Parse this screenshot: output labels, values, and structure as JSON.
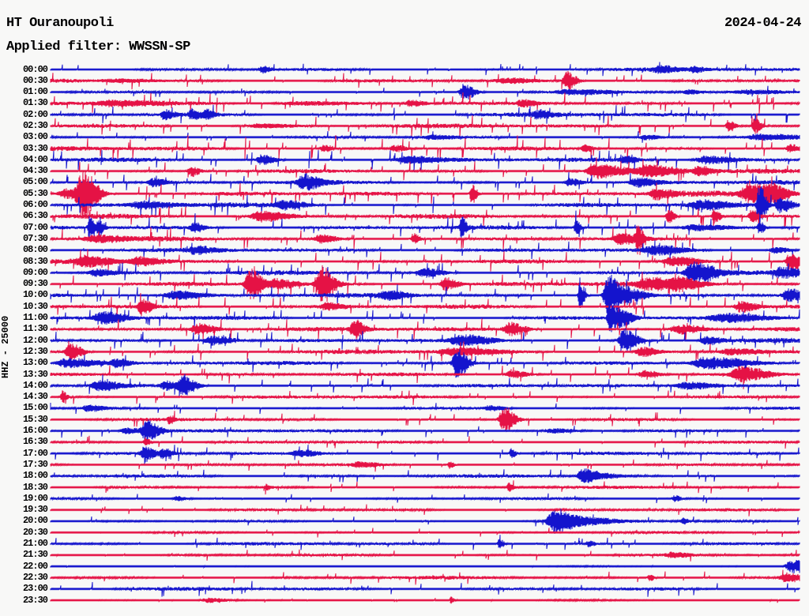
{
  "header": {
    "station": "HT Ouranoupoli",
    "filter": "Applied filter: WWSSN-SP",
    "date": "2024-04-24"
  },
  "axis": {
    "scale_label": "HHZ - 25000",
    "start_time": "00:00",
    "end_time": "23:30",
    "minutes_per_row": 30
  },
  "chart_data": {
    "type": "line",
    "subtype": "helicorder-seismogram",
    "legend": "alternating half-hour traces, blue = hh:00 rows, red = hh:30 rows",
    "colors": {
      "blue": "#1414cd",
      "red": "#e51245",
      "label": "#000000",
      "background": "#f8f8f7"
    },
    "rows": [
      {
        "t": "00:00",
        "c": "blue",
        "n": 1.6,
        "s": 1.2,
        "e": [
          [
            332,
            5,
            4
          ],
          [
            835,
            12,
            3
          ],
          [
            878,
            6,
            3
          ]
        ]
      },
      {
        "t": "00:30",
        "c": "red",
        "n": 1.7,
        "s": 1.5,
        "e": [
          [
            717,
            6,
            12
          ],
          [
            640,
            20,
            3
          ],
          [
            150,
            30,
            2.5
          ]
        ]
      },
      {
        "t": "01:00",
        "c": "blue",
        "n": 1.2,
        "s": 1.0,
        "e": [
          [
            587,
            7,
            10
          ],
          [
            720,
            25,
            2.5
          ],
          [
            950,
            30,
            2.5
          ],
          [
            870,
            8,
            3
          ]
        ]
      },
      {
        "t": "01:30",
        "c": "red",
        "n": 1.8,
        "s": 2.2,
        "e": [
          [
            140,
            25,
            3
          ],
          [
            380,
            40,
            2.5
          ],
          [
            520,
            10,
            4
          ],
          [
            660,
            8,
            4
          ]
        ]
      },
      {
        "t": "02:00",
        "c": "blue",
        "n": 1.8,
        "s": 1.8,
        "e": [
          [
            208,
            6,
            6
          ],
          [
            243,
            6,
            6
          ],
          [
            262,
            5,
            5
          ],
          [
            680,
            8,
            4
          ]
        ]
      },
      {
        "t": "02:30",
        "c": "red",
        "n": 1.8,
        "s": 2.0,
        "e": [
          [
            922,
            4,
            8
          ],
          [
            955,
            4,
            9
          ],
          [
            330,
            20,
            2.5
          ]
        ]
      },
      {
        "t": "03:00",
        "c": "blue",
        "n": 1.4,
        "s": 1.2,
        "e": [
          [
            545,
            15,
            2.5
          ],
          [
            817,
            10,
            3
          ],
          [
            960,
            20,
            3
          ]
        ]
      },
      {
        "t": "03:30",
        "c": "red",
        "n": 2.0,
        "s": 2.6,
        "e": [
          [
            410,
            6,
            5
          ],
          [
            500,
            8,
            4
          ],
          [
            740,
            5,
            5
          ],
          [
            1000,
            6,
            5
          ]
        ]
      },
      {
        "t": "04:00",
        "c": "blue",
        "n": 2.0,
        "s": 2.0,
        "e": [
          [
            331,
            8,
            6
          ],
          [
            515,
            20,
            4
          ],
          [
            791,
            8,
            4
          ],
          [
            893,
            18,
            5
          ]
        ]
      },
      {
        "t": "04:30",
        "c": "red",
        "n": 2.0,
        "s": 2.0,
        "e": [
          [
            242,
            6,
            6
          ],
          [
            755,
            16,
            8
          ],
          [
            820,
            18,
            6
          ],
          [
            884,
            8,
            5
          ]
        ]
      },
      {
        "t": "05:00",
        "c": "blue",
        "n": 2.0,
        "s": 1.8,
        "e": [
          [
            193,
            8,
            5
          ],
          [
            385,
            10,
            9
          ],
          [
            721,
            8,
            5
          ],
          [
            807,
            12,
            5
          ]
        ]
      },
      {
        "t": "05:30",
        "c": "red",
        "n": 2.2,
        "s": 2.0,
        "e": [
          [
            104,
            9,
            26
          ],
          [
            85,
            15,
            6
          ],
          [
            597,
            3,
            14
          ],
          [
            830,
            10,
            6
          ],
          [
            950,
            16,
            11
          ],
          [
            975,
            10,
            8
          ]
        ]
      },
      {
        "t": "06:00",
        "c": "blue",
        "n": 2.2,
        "s": 2.0,
        "e": [
          [
            180,
            20,
            4
          ],
          [
            360,
            14,
            5
          ],
          [
            887,
            16,
            5
          ],
          [
            961,
            4,
            24
          ],
          [
            988,
            8,
            10
          ]
        ]
      },
      {
        "t": "06:30",
        "c": "red",
        "n": 2.2,
        "s": 2.0,
        "e": [
          [
            330,
            16,
            6
          ],
          [
            846,
            4,
            8
          ],
          [
            904,
            4,
            9
          ],
          [
            951,
            4,
            8
          ]
        ]
      },
      {
        "t": "07:00",
        "c": "blue",
        "n": 1.8,
        "s": 2.0,
        "e": [
          [
            113,
            3,
            13
          ],
          [
            125,
            3,
            12
          ],
          [
            245,
            6,
            6
          ],
          [
            584,
            3,
            12
          ],
          [
            729,
            3,
            10
          ],
          [
            880,
            25,
            4
          ],
          [
            961,
            3,
            9
          ]
        ]
      },
      {
        "t": "07:30",
        "c": "red",
        "n": 1.8,
        "s": 2.2,
        "e": [
          [
            120,
            20,
            4
          ],
          [
            405,
            10,
            5
          ],
          [
            523,
            4,
            7
          ],
          [
            785,
            12,
            6
          ],
          [
            807,
            3,
            15
          ]
        ]
      },
      {
        "t": "08:00",
        "c": "blue",
        "n": 1.8,
        "s": 1.6,
        "e": [
          [
            247,
            12,
            4
          ],
          [
            830,
            18,
            5
          ],
          [
            980,
            10,
            4
          ]
        ]
      },
      {
        "t": "08:30",
        "c": "red",
        "n": 2.0,
        "s": 2.0,
        "e": [
          [
            108,
            16,
            6
          ],
          [
            175,
            14,
            5
          ],
          [
            852,
            16,
            6
          ],
          [
            1000,
            6,
            12
          ]
        ]
      },
      {
        "t": "09:00",
        "c": "blue",
        "n": 2.0,
        "s": 1.8,
        "e": [
          [
            121,
            12,
            4
          ],
          [
            537,
            12,
            5
          ],
          [
            878,
            14,
            12
          ],
          [
            990,
            14,
            6
          ]
        ]
      },
      {
        "t": "09:30",
        "c": "red",
        "n": 2.2,
        "s": 2.0,
        "e": [
          [
            316,
            8,
            18
          ],
          [
            350,
            12,
            6
          ],
          [
            406,
            8,
            20
          ],
          [
            563,
            8,
            8
          ],
          [
            820,
            16,
            6
          ],
          [
            858,
            14,
            6
          ]
        ]
      },
      {
        "t": "10:00",
        "c": "blue",
        "n": 2.0,
        "s": 1.8,
        "e": [
          [
            220,
            16,
            5
          ],
          [
            490,
            12,
            5
          ],
          [
            734,
            3,
            17
          ],
          [
            770,
            8,
            26
          ],
          [
            795,
            12,
            8
          ],
          [
            997,
            8,
            8
          ]
        ]
      },
      {
        "t": "10:30",
        "c": "red",
        "n": 2.0,
        "s": 2.0,
        "e": [
          [
            179,
            6,
            9
          ],
          [
            414,
            10,
            4
          ],
          [
            937,
            10,
            7
          ]
        ]
      },
      {
        "t": "11:00",
        "c": "blue",
        "n": 1.8,
        "s": 1.8,
        "e": [
          [
            130,
            14,
            7
          ],
          [
            771,
            3,
            20
          ],
          [
            783,
            8,
            12
          ],
          [
            920,
            30,
            5
          ]
        ]
      },
      {
        "t": "11:30",
        "c": "red",
        "n": 2.0,
        "s": 2.0,
        "e": [
          [
            250,
            12,
            7
          ],
          [
            448,
            6,
            11
          ],
          [
            645,
            10,
            8
          ],
          [
            860,
            16,
            6
          ]
        ]
      },
      {
        "t": "12:00",
        "c": "blue",
        "n": 2.0,
        "s": 1.8,
        "e": [
          [
            268,
            14,
            6
          ],
          [
            585,
            20,
            6
          ],
          [
            790,
            8,
            15
          ],
          [
            894,
            10,
            5
          ]
        ]
      },
      {
        "t": "12:30",
        "c": "red",
        "n": 1.8,
        "s": 1.8,
        "e": [
          [
            88,
            8,
            10
          ],
          [
            575,
            25,
            4
          ],
          [
            812,
            10,
            6
          ],
          [
            925,
            20,
            4
          ]
        ]
      },
      {
        "t": "13:00",
        "c": "blue",
        "n": 1.6,
        "s": 1.6,
        "e": [
          [
            85,
            20,
            6
          ],
          [
            147,
            8,
            5
          ],
          [
            578,
            7,
            17
          ],
          [
            895,
            25,
            7
          ]
        ]
      },
      {
        "t": "13:30",
        "c": "red",
        "n": 1.6,
        "s": 1.8,
        "e": [
          [
            647,
            10,
            5
          ],
          [
            815,
            10,
            5
          ],
          [
            938,
            16,
            9
          ]
        ]
      },
      {
        "t": "14:00",
        "c": "blue",
        "n": 1.6,
        "s": 1.6,
        "e": [
          [
            125,
            12,
            6
          ],
          [
            210,
            8,
            5
          ],
          [
            232,
            8,
            11
          ],
          [
            870,
            20,
            5
          ]
        ]
      },
      {
        "t": "14:30",
        "c": "red",
        "n": 1.4,
        "s": 1.4,
        "e": [
          [
            79,
            3,
            7
          ]
        ]
      },
      {
        "t": "15:00",
        "c": "blue",
        "n": 1.2,
        "s": 1.2,
        "e": [
          [
            112,
            10,
            4
          ],
          [
            620,
            10,
            3
          ]
        ]
      },
      {
        "t": "15:30",
        "c": "red",
        "n": 1.3,
        "s": 1.4,
        "e": [
          [
            214,
            3,
            5
          ],
          [
            637,
            7,
            16
          ]
        ]
      },
      {
        "t": "16:00",
        "c": "blue",
        "n": 1.4,
        "s": 1.4,
        "e": [
          [
            160,
            10,
            4
          ],
          [
            185,
            8,
            12
          ],
          [
            700,
            15,
            3
          ]
        ]
      },
      {
        "t": "16:30",
        "c": "red",
        "n": 1.3,
        "s": 1.3,
        "e": [
          [
            184,
            3,
            6
          ]
        ]
      },
      {
        "t": "17:00",
        "c": "blue",
        "n": 1.5,
        "s": 1.5,
        "e": [
          [
            183,
            6,
            9
          ],
          [
            206,
            6,
            6
          ],
          [
            380,
            15,
            4
          ],
          [
            647,
            3,
            6
          ]
        ]
      },
      {
        "t": "17:30",
        "c": "red",
        "n": 1.2,
        "s": 1.2,
        "e": [
          [
            455,
            12,
            3
          ],
          [
            569,
            3,
            5
          ]
        ]
      },
      {
        "t": "18:00",
        "c": "blue",
        "n": 1.5,
        "s": 1.3,
        "e": [
          [
            736,
            6,
            8
          ],
          [
            750,
            15,
            4
          ]
        ]
      },
      {
        "t": "18:30",
        "c": "red",
        "n": 1.2,
        "s": 1.2,
        "e": [
          [
            337,
            3,
            4
          ],
          [
            644,
            3,
            5
          ]
        ]
      },
      {
        "t": "19:00",
        "c": "blue",
        "n": 1.0,
        "s": 1.0,
        "e": [
          [
            224,
            6,
            3
          ],
          [
            854,
            4,
            4
          ]
        ]
      },
      {
        "t": "19:30",
        "c": "red",
        "n": 1.2,
        "s": 1.1,
        "e": []
      },
      {
        "t": "20:00",
        "c": "blue",
        "n": 1.1,
        "s": 1.0,
        "e": [
          [
            700,
            10,
            12
          ],
          [
            720,
            25,
            5
          ],
          [
            864,
            3,
            5
          ]
        ]
      },
      {
        "t": "20:30",
        "c": "red",
        "n": 1.0,
        "s": 1.0,
        "e": []
      },
      {
        "t": "21:00",
        "c": "blue",
        "n": 1.4,
        "s": 1.3,
        "e": [
          [
            632,
            3,
            6
          ],
          [
            745,
            4,
            4
          ]
        ]
      },
      {
        "t": "21:30",
        "c": "red",
        "n": 1.1,
        "s": 1.1,
        "e": [
          [
            851,
            10,
            3
          ]
        ]
      },
      {
        "t": "22:00",
        "c": "blue",
        "n": 0.5,
        "s": 0.3,
        "e": [
          [
            1000,
            7,
            9
          ],
          [
            1012,
            4,
            5
          ]
        ]
      },
      {
        "t": "22:30",
        "c": "red",
        "n": 1.3,
        "s": 1.3,
        "e": [
          [
            822,
            3,
            5
          ],
          [
            995,
            10,
            5
          ]
        ]
      },
      {
        "t": "23:00",
        "c": "blue",
        "n": 1.5,
        "s": 1.5,
        "e": []
      },
      {
        "t": "23:30",
        "c": "red",
        "n": 0.6,
        "s": 0.5,
        "e": [
          [
            264,
            12,
            3
          ],
          [
            571,
            2,
            4
          ]
        ]
      }
    ]
  }
}
